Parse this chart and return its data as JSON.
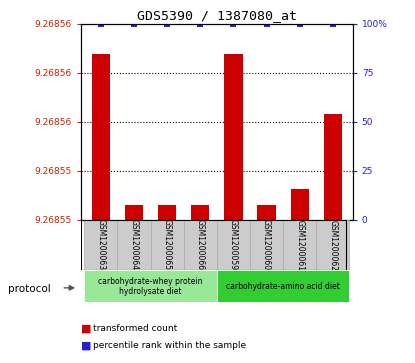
{
  "title": "GDS5390 / 1387080_at",
  "samples": [
    "GSM1200063",
    "GSM1200064",
    "GSM1200065",
    "GSM1200066",
    "GSM1200059",
    "GSM1200060",
    "GSM1200061",
    "GSM1200062"
  ],
  "red_values": [
    9.26856,
    9.26855,
    9.26855,
    9.26855,
    9.26856,
    9.26855,
    9.268551,
    9.268556
  ],
  "blue_values": [
    100,
    100,
    100,
    100,
    100,
    100,
    100,
    100
  ],
  "ymin": 9.268549,
  "ymax": 9.268562,
  "right_yticks": [
    0,
    25,
    50,
    75,
    100
  ],
  "right_yticklabels": [
    "0",
    "25",
    "50",
    "75",
    "100%"
  ],
  "protocol_groups": [
    {
      "label": "carbohydrate-whey protein\nhydrolysate diet",
      "start": 0,
      "end": 4,
      "color": "#98E898"
    },
    {
      "label": "carbohydrate-amino acid diet",
      "start": 4,
      "end": 8,
      "color": "#32CD32"
    }
  ],
  "bar_color": "#CC0000",
  "dot_color": "#2222CC",
  "bg_color": "#FFFFFF",
  "label_color_red": "#CC2200",
  "label_color_blue": "#2222CC",
  "tick_area_color": "#CCCCCC"
}
